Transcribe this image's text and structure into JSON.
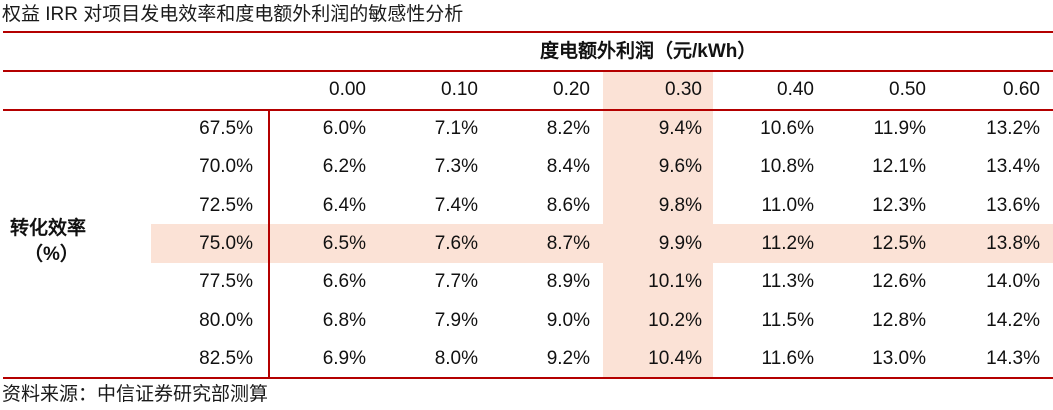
{
  "title": "权益 IRR 对项目发电效率和度电额外利润的敏感性分析",
  "table": {
    "column_group_header": "度电额外利润（元/kWh）",
    "row_group_header": {
      "label": "转化效率",
      "unit": "（%）"
    },
    "columns": [
      "0.00",
      "0.10",
      "0.20",
      "0.30",
      "0.40",
      "0.50",
      "0.60"
    ],
    "highlight_column": "0.30",
    "highlight_row": "75.0%",
    "highlight_color": "#fbe2d6",
    "rule_color": "#b40000",
    "rows": [
      {
        "label": "67.5%",
        "values": [
          "6.0%",
          "7.1%",
          "8.2%",
          "9.4%",
          "10.6%",
          "11.9%",
          "13.2%"
        ]
      },
      {
        "label": "70.0%",
        "values": [
          "6.2%",
          "7.3%",
          "8.4%",
          "9.6%",
          "10.8%",
          "12.1%",
          "13.4%"
        ]
      },
      {
        "label": "72.5%",
        "values": [
          "6.4%",
          "7.4%",
          "8.6%",
          "9.8%",
          "11.0%",
          "12.3%",
          "13.6%"
        ]
      },
      {
        "label": "75.0%",
        "values": [
          "6.5%",
          "7.6%",
          "8.7%",
          "9.9%",
          "11.2%",
          "12.5%",
          "13.8%"
        ]
      },
      {
        "label": "77.5%",
        "values": [
          "6.6%",
          "7.7%",
          "8.9%",
          "10.1%",
          "11.3%",
          "12.6%",
          "14.0%"
        ]
      },
      {
        "label": "80.0%",
        "values": [
          "6.8%",
          "7.9%",
          "9.0%",
          "10.2%",
          "11.5%",
          "12.8%",
          "14.2%"
        ]
      },
      {
        "label": "82.5%",
        "values": [
          "6.9%",
          "8.0%",
          "9.2%",
          "10.4%",
          "11.6%",
          "13.0%",
          "14.3%"
        ]
      }
    ]
  },
  "footer": "资料来源：中信证券研究部测算"
}
